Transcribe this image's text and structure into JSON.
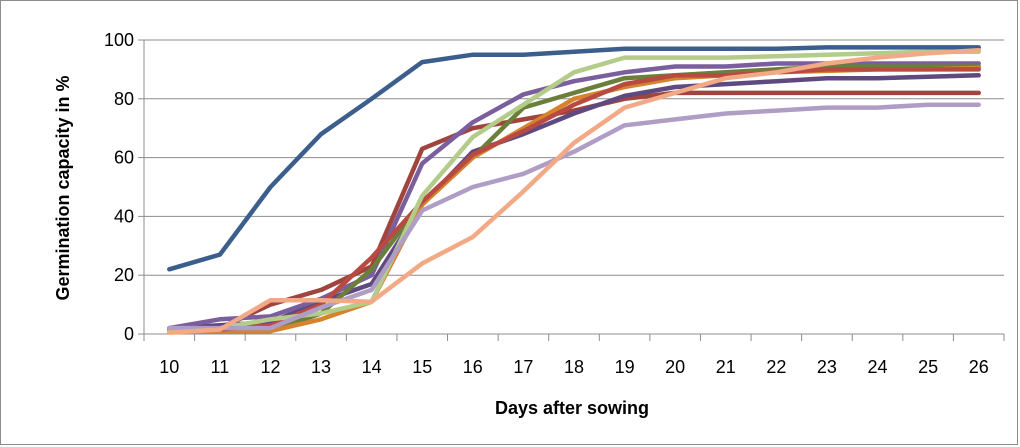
{
  "chart_data": {
    "type": "line",
    "title": "",
    "xlabel": "Days after sowing",
    "ylabel": "Germination capacity in %",
    "x": [
      10,
      11,
      12,
      13,
      14,
      15,
      16,
      17,
      18,
      19,
      20,
      21,
      22,
      23,
      24,
      25,
      26
    ],
    "ylim": [
      0,
      100
    ],
    "yticks": [
      0,
      20,
      40,
      60,
      80,
      100
    ],
    "grid": "horizontal",
    "legend": "none",
    "series": [
      {
        "color": "#3B5E8C",
        "values": [
          22,
          27,
          50,
          68,
          80,
          92.5,
          95,
          95,
          96,
          97,
          97,
          97,
          97,
          97.5,
          97.5,
          97.5,
          97.5
        ]
      },
      {
        "color": "#A0443E",
        "values": [
          1.5,
          2,
          10,
          15,
          23,
          63,
          70,
          73,
          76,
          80,
          82,
          82,
          82,
          82,
          82,
          82,
          82
        ]
      },
      {
        "color": "#5E4A7F",
        "values": [
          2,
          3,
          4,
          11,
          17,
          44,
          62,
          68,
          75,
          81,
          84,
          85,
          86,
          87,
          87,
          87.5,
          88
        ]
      },
      {
        "color": "#7B5E9E",
        "values": [
          2,
          5,
          6,
          12,
          20,
          58,
          72,
          81.5,
          86,
          89,
          91,
          91,
          92,
          92,
          92,
          92,
          92
        ]
      },
      {
        "color": "#6B7F3A",
        "values": [
          1,
          1,
          1,
          7,
          22,
          45,
          60,
          77,
          82,
          87,
          88,
          89,
          90,
          91,
          91,
          91,
          91
        ]
      },
      {
        "color": "#D5832D",
        "values": [
          0.5,
          1,
          1,
          5,
          11,
          44,
          60,
          70,
          80,
          84,
          87,
          88,
          89,
          89.5,
          90,
          90,
          90.5
        ]
      },
      {
        "color": "#B84A42",
        "values": [
          1,
          1.5,
          3,
          10,
          26,
          45,
          61,
          69,
          78,
          85,
          88,
          88,
          89,
          90,
          90,
          90,
          90
        ]
      },
      {
        "color": "#B3CC8A",
        "values": [
          1,
          2,
          5,
          7,
          11,
          47,
          67,
          78,
          89,
          94,
          94,
          94,
          94.5,
          95,
          95.5,
          96,
          96
        ]
      },
      {
        "color": "#B09DC6",
        "values": [
          2,
          2,
          2,
          9,
          15,
          42,
          50,
          54.5,
          62,
          71,
          73,
          75,
          76,
          77,
          77,
          78,
          78
        ]
      },
      {
        "color": "#F2AA86",
        "values": [
          0.5,
          1.5,
          11.5,
          11.5,
          11,
          24,
          33,
          48.5,
          65,
          77,
          82,
          87,
          89,
          92,
          94,
          95.5,
          96.5
        ]
      }
    ]
  }
}
